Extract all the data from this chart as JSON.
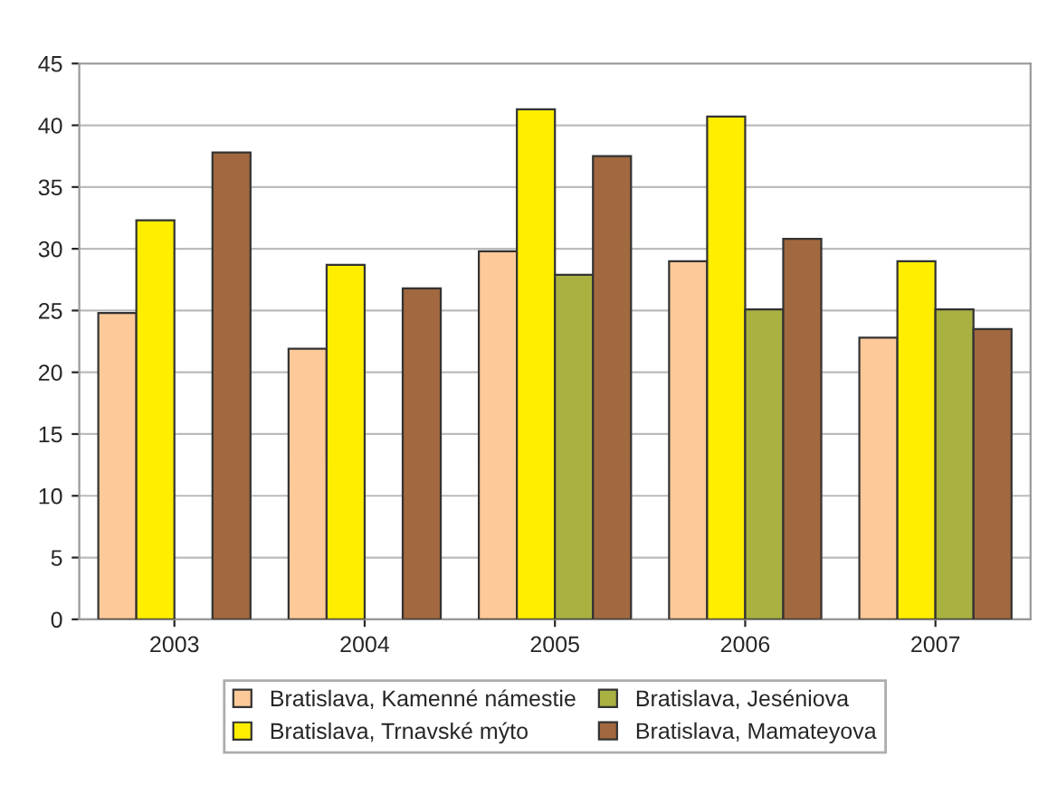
{
  "chart_data": {
    "type": "bar",
    "categories": [
      "2003",
      "2004",
      "2005",
      "2006",
      "2007"
    ],
    "series": [
      {
        "name": "Bratislava, Kamenné námestie",
        "color": "#fdc998",
        "values": [
          24.8,
          21.9,
          29.8,
          29.0,
          22.8
        ]
      },
      {
        "name": "Bratislava, Trnavské mýto",
        "color": "#ffee00",
        "values": [
          32.3,
          28.7,
          41.3,
          40.7,
          29.0
        ]
      },
      {
        "name": "Bratislava, Jeséniova",
        "color": "#a9b241",
        "values": [
          null,
          null,
          27.9,
          25.1,
          25.1
        ]
      },
      {
        "name": "Bratislava, Mamateyova",
        "color": "#a2683f",
        "values": [
          37.8,
          26.8,
          37.5,
          30.8,
          23.5
        ]
      }
    ],
    "ylim": [
      0,
      45
    ],
    "yticks": [
      0,
      5,
      10,
      15,
      20,
      25,
      30,
      35,
      40,
      45
    ],
    "grid": "y",
    "legend": "bottom"
  }
}
